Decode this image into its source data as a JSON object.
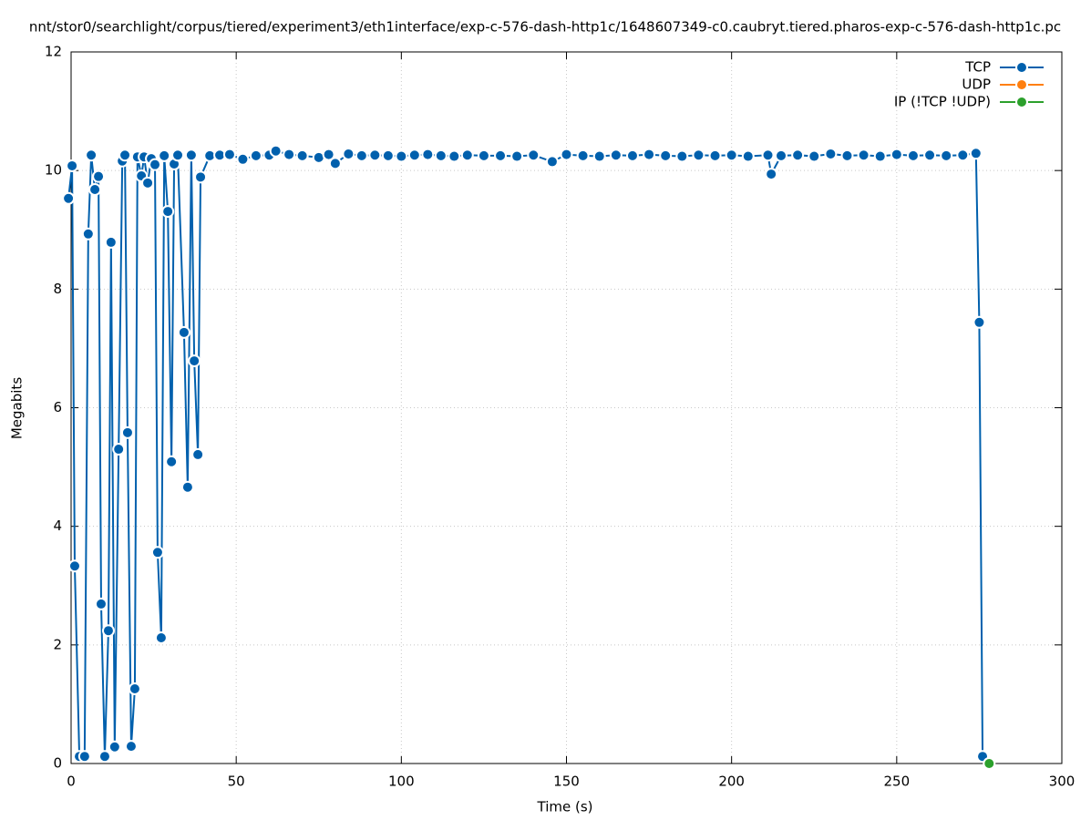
{
  "chart_data": {
    "type": "line",
    "title": "nnt/stor0/searchlight/corpus/tiered/experiment3/eth1interface/exp-c-576-dash-http1c/1648607349-c0.caubryt.tiered.pharos-exp-c-576-dash-http1c.pc",
    "x_label": "Time (s)",
    "y_label": "Megabits",
    "xlim": [
      0,
      300
    ],
    "xticks": [
      0,
      50,
      100,
      150,
      200,
      250,
      300
    ],
    "ylim": [
      0,
      12
    ],
    "yticks": [
      0,
      2,
      4,
      6,
      8,
      10,
      12
    ],
    "grid": true,
    "legend": "top-right",
    "series": [
      {
        "name": "TCP",
        "color": "#0060ad",
        "x": [
          -0.8,
          0.3,
          1.1,
          2.5,
          4.1,
          5.2,
          6.1,
          7.2,
          8.3,
          9.1,
          10.2,
          11.3,
          12.1,
          13.2,
          14.4,
          15.5,
          16.3,
          17.1,
          18.2,
          19.3,
          20.1,
          21.3,
          22.1,
          23.2,
          24.3,
          25.4,
          26.2,
          27.3,
          28.2,
          29.3,
          30.4,
          31.2,
          32.3,
          34.2,
          35.3,
          36.4,
          37.3,
          38.4,
          39.2,
          42,
          45,
          48,
          52,
          56,
          60,
          62,
          66,
          70,
          75,
          78,
          80,
          84,
          88,
          92,
          96,
          100,
          104,
          108,
          112,
          116,
          120,
          125,
          130,
          135,
          140,
          145.7,
          150,
          155,
          160,
          165,
          170,
          175,
          180,
          185,
          190,
          195,
          200,
          205,
          211,
          212,
          215,
          220,
          225,
          230,
          235,
          240,
          245,
          250,
          255,
          260,
          265,
          270,
          274,
          275,
          276
        ],
        "values": [
          9.53,
          10.08,
          3.33,
          0.12,
          0.12,
          8.93,
          10.26,
          9.68,
          9.9,
          2.69,
          0.12,
          2.24,
          8.79,
          0.28,
          5.3,
          10.16,
          10.26,
          5.58,
          0.29,
          1.26,
          10.23,
          9.91,
          10.23,
          9.79,
          10.2,
          10.1,
          3.56,
          2.12,
          10.25,
          9.31,
          5.09,
          10.11,
          10.26,
          7.27,
          4.66,
          10.26,
          6.79,
          5.21,
          9.89,
          10.25,
          10.26,
          10.27,
          10.19,
          10.25,
          10.26,
          10.33,
          10.27,
          10.25,
          10.22,
          10.27,
          10.12,
          10.28,
          10.25,
          10.26,
          10.25,
          10.24,
          10.26,
          10.27,
          10.25,
          10.24,
          10.26,
          10.25,
          10.25,
          10.24,
          10.26,
          10.15,
          10.27,
          10.25,
          10.24,
          10.26,
          10.25,
          10.27,
          10.25,
          10.24,
          10.26,
          10.25,
          10.26,
          10.24,
          10.26,
          9.94,
          10.25,
          10.26,
          10.24,
          10.28,
          10.25,
          10.26,
          10.24,
          10.27,
          10.25,
          10.26,
          10.25,
          10.26,
          10.29,
          7.44,
          0.12
        ]
      },
      {
        "name": "UDP",
        "color": "#ff7f0e",
        "x": [],
        "values": []
      },
      {
        "name": "IP (!TCP  !UDP)",
        "color": "#2ca02c",
        "x": [
          278
        ],
        "values": [
          0
        ]
      }
    ]
  }
}
